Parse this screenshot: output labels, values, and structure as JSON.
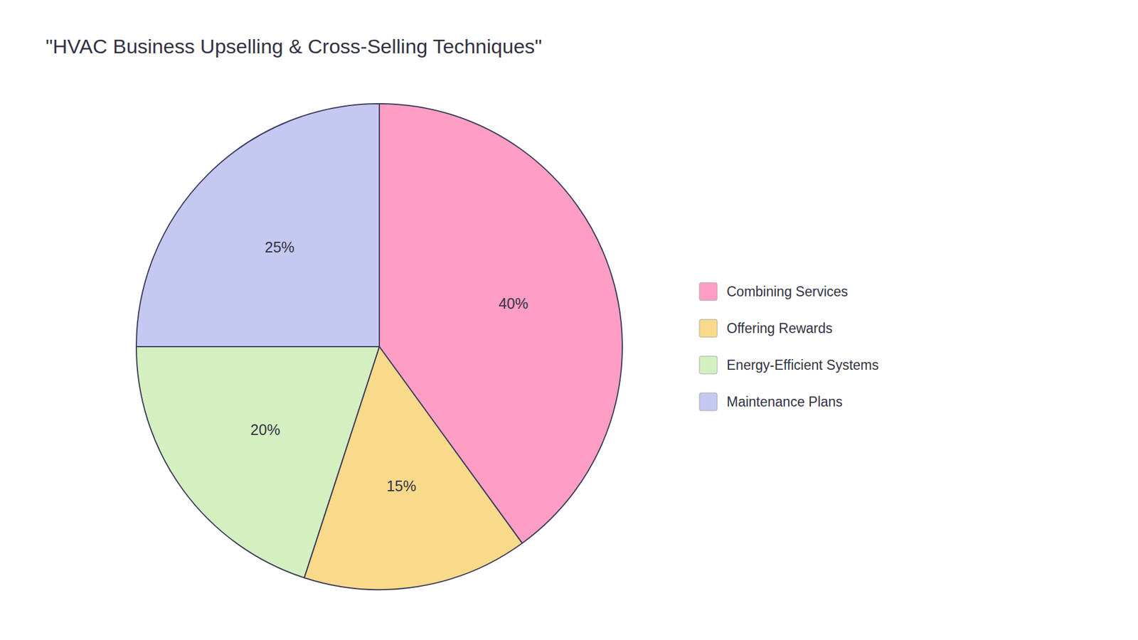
{
  "chart_data": {
    "type": "pie",
    "title": "\"HVAC Business Upselling & Cross-Selling Techniques\"",
    "categories": [
      "Combining Services",
      "Offering Rewards",
      "Energy-Efficient Systems",
      "Maintenance Plans"
    ],
    "values": [
      40,
      15,
      20,
      25
    ],
    "value_labels": [
      "40%",
      "15%",
      "20%",
      "25%"
    ],
    "colors": [
      "#FF9EC4",
      "#F9D98A",
      "#D4F0C0",
      "#C5C8F0"
    ],
    "data_labels": true,
    "legend": "right"
  }
}
